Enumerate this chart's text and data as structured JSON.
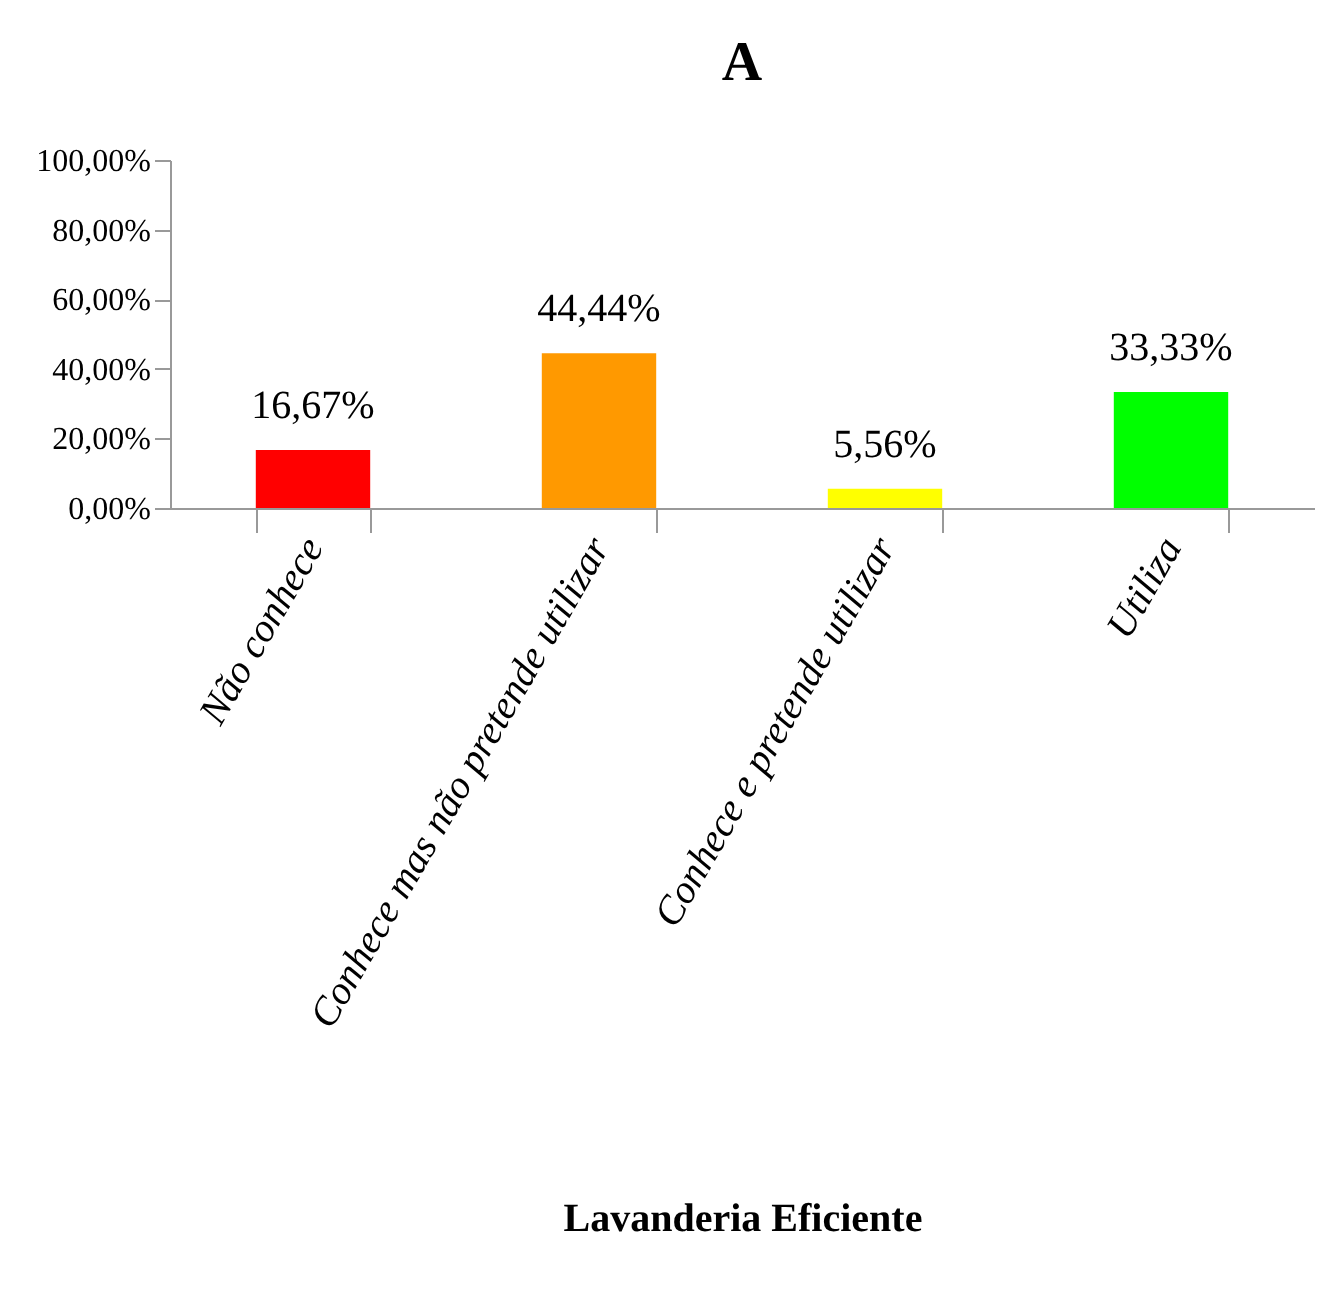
{
  "chart_data": {
    "type": "bar",
    "title": "A",
    "xlabel": "Lavanderia Eficiente",
    "categories": [
      "Não conhece",
      "Conhece mas não pretende utilizar",
      "Conhece e pretende utilizar",
      "Utiliza"
    ],
    "values": [
      16.67,
      44.44,
      5.56,
      33.33
    ],
    "colors": [
      "#ff0000",
      "#ff9900",
      "#ffff00",
      "#00ff00"
    ],
    "value_labels": [
      "16,67%",
      "44,44%",
      "5,56%",
      "33,33%"
    ],
    "ylim": [
      0,
      100
    ],
    "yticks": [
      {
        "value": 0,
        "label": "0,00%"
      },
      {
        "value": 20,
        "label": "20,00%"
      },
      {
        "value": 40,
        "label": "40,00%"
      },
      {
        "value": 60,
        "label": "60,00%"
      },
      {
        "value": 80,
        "label": "80,00%"
      },
      {
        "value": 100,
        "label": "100,00%"
      }
    ],
    "grid": false,
    "legend": false
  }
}
